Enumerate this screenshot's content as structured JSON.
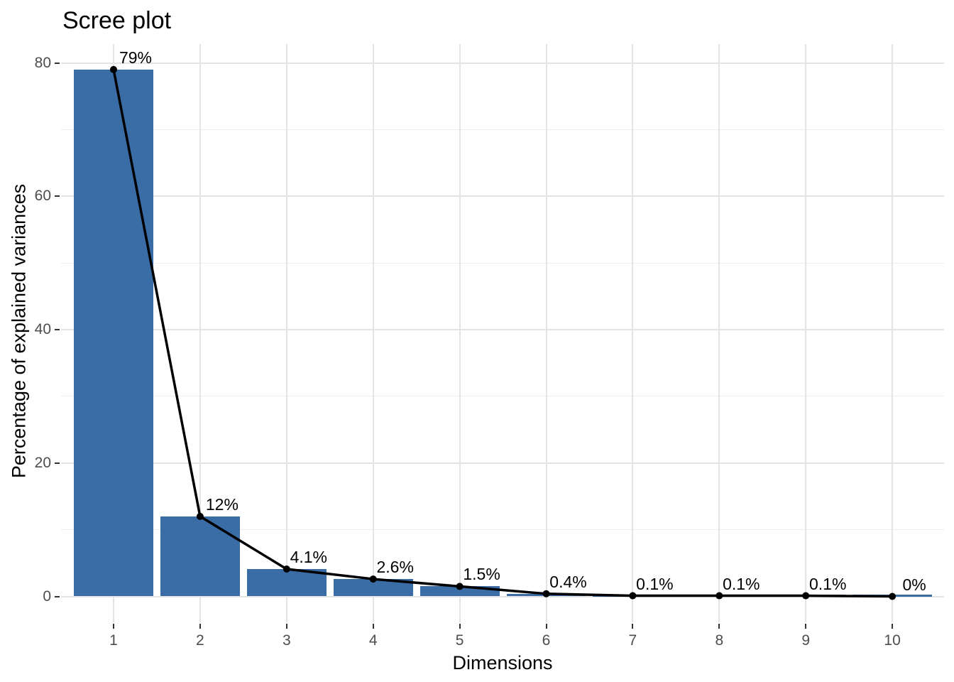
{
  "chart_data": {
    "type": "bar",
    "overlay": "line",
    "title": "Scree plot",
    "xlabel": "Dimensions",
    "ylabel": "Percentage of explained variances",
    "categories": [
      "1",
      "2",
      "3",
      "4",
      "5",
      "6",
      "7",
      "8",
      "9",
      "10"
    ],
    "values": [
      79,
      12,
      4.1,
      2.6,
      1.5,
      0.4,
      0.1,
      0.1,
      0.1,
      0
    ],
    "point_labels": [
      "79%",
      "12%",
      "4.1%",
      "2.6%",
      "1.5%",
      "0.4%",
      "0.1%",
      "0.1%",
      "0.1%",
      "0%"
    ],
    "y_ticks": [
      0,
      20,
      40,
      60,
      80
    ],
    "y_minor_ticks": [
      10,
      30,
      50,
      70
    ],
    "ylim": [
      0,
      80
    ],
    "grid": true,
    "legend": "none",
    "colors": {
      "bar_fill": "#3A6CA6",
      "line": "#000000",
      "point": "#000000",
      "grid_major": "#E4E4E4",
      "grid_minor": "#EDEDED",
      "tick_mark": "#333333",
      "tick_label": "#4D4D4D",
      "text": "#000000",
      "background": "#FFFFFF"
    }
  }
}
